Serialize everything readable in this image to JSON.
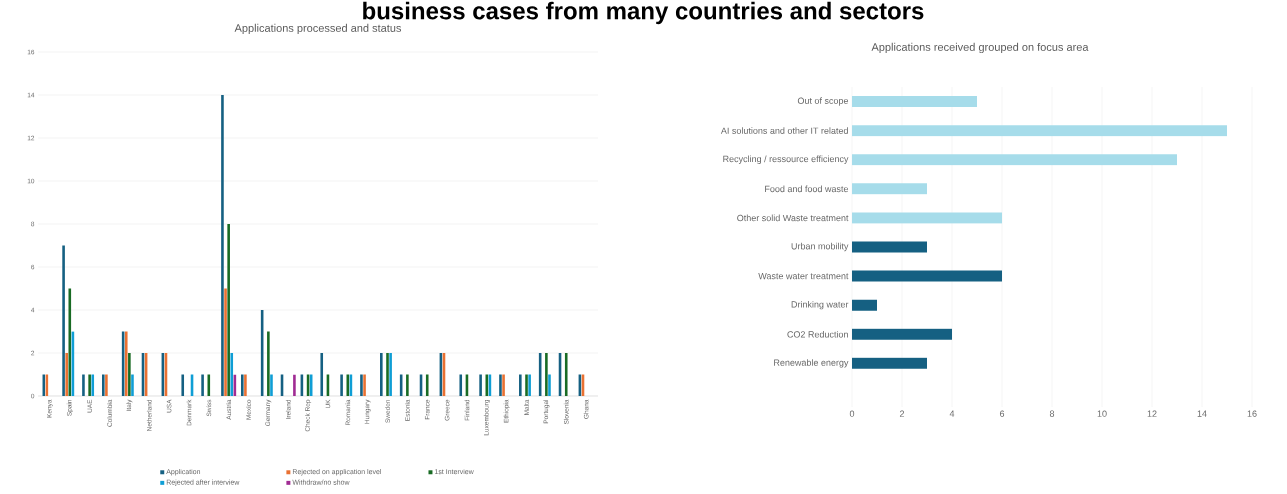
{
  "chart_data": [
    {
      "type": "bar",
      "title": "Applications processed and status",
      "annotations": [
        "business cases from many countries and sectors"
      ],
      "categories": [
        "Kenya",
        "Spain",
        "UAE",
        "Columbia",
        "Italy",
        "Netherland",
        "USA",
        "Denmark",
        "Swiss",
        "Austria",
        "Mexico",
        "Germany",
        "Ireland",
        "Check Rep",
        "UK",
        "Romania",
        "Hungary",
        "Sweden",
        "Estonia",
        "France",
        "Greece",
        "Finland",
        "Luxembourg",
        "Ethiopia",
        "Malta",
        "Portugal",
        "Slovenia",
        "Ghana"
      ],
      "series": [
        {
          "name": "Application",
          "color": "#156082",
          "values": [
            1,
            7,
            1,
            1,
            3,
            2,
            2,
            1,
            1,
            14,
            1,
            4,
            1,
            1,
            2,
            1,
            1,
            2,
            1,
            1,
            2,
            1,
            1,
            1,
            1,
            2,
            2,
            1
          ]
        },
        {
          "name": "Rejected on application level",
          "color": "#e97132",
          "values": [
            1,
            2,
            0,
            1,
            3,
            2,
            2,
            0,
            0,
            5,
            1,
            0,
            0,
            0,
            0,
            0,
            1,
            0,
            0,
            0,
            2,
            0,
            0,
            1,
            0,
            0,
            0,
            1
          ]
        },
        {
          "name": "1st Interview",
          "color": "#196b24",
          "values": [
            0,
            5,
            1,
            0,
            2,
            0,
            0,
            0,
            1,
            8,
            0,
            3,
            0,
            1,
            1,
            1,
            0,
            2,
            1,
            1,
            0,
            1,
            1,
            0,
            1,
            2,
            2,
            0
          ]
        },
        {
          "name": "Rejected after interview",
          "color": "#0f9ed5",
          "values": [
            0,
            3,
            1,
            0,
            1,
            0,
            0,
            1,
            0,
            2,
            0,
            1,
            0,
            1,
            0,
            1,
            0,
            2,
            0,
            0,
            0,
            0,
            1,
            0,
            1,
            1,
            0,
            0
          ]
        },
        {
          "name": "Withdraw/no show",
          "color": "#a02b93",
          "values": [
            0,
            0,
            0,
            0,
            0,
            0,
            0,
            0,
            0,
            1,
            0,
            0,
            1,
            0,
            0,
            0,
            0,
            0,
            0,
            0,
            0,
            0,
            0,
            0,
            0,
            0,
            0,
            0
          ]
        }
      ],
      "ylim": [
        0,
        16
      ],
      "yticks": [
        0,
        2,
        4,
        6,
        8,
        10,
        12,
        14,
        16
      ],
      "grid": "y",
      "legend": "bottom"
    },
    {
      "type": "bar",
      "orientation": "horizontal",
      "title": "Applications received grouped on focus area",
      "categories": [
        "Out of scope",
        "AI solutions and other IT related",
        "Recycling / ressource efficiency",
        "Food and food waste",
        "Other solid Waste treatment",
        "Urban mobility",
        "Waste water treatment",
        "Drinking water",
        "CO2 Reduction",
        "Renewable energy"
      ],
      "values": [
        5,
        15,
        13,
        3,
        6,
        3,
        6,
        1,
        4,
        3
      ],
      "colors": [
        "#a6dcea",
        "#a6dcea",
        "#a6dcea",
        "#a6dcea",
        "#a6dcea",
        "#156082",
        "#156082",
        "#156082",
        "#156082",
        "#156082"
      ],
      "xlim": [
        0,
        16
      ],
      "xticks": [
        0,
        2,
        4,
        6,
        8,
        10,
        12,
        14,
        16
      ],
      "grid": "x"
    }
  ]
}
